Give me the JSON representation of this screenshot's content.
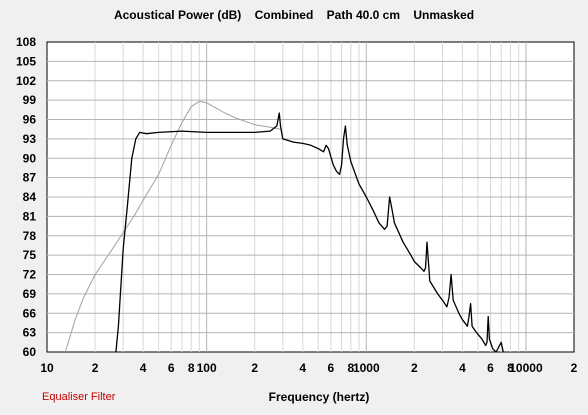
{
  "chart_data": {
    "type": "line",
    "title": "Acoustical Power (dB)    Combined    Path 40.0 cm    Unmasked",
    "xlabel": "Frequency (hertz)",
    "ylabel": "",
    "x_scale": "log",
    "xlim": [
      10,
      20000
    ],
    "ylim": [
      60,
      108
    ],
    "grid": true,
    "y_ticks": [
      "108",
      "105",
      "102",
      "99",
      "96",
      "93",
      "90",
      "87",
      "84",
      "81",
      "78",
      "75",
      "72",
      "69",
      "66",
      "63",
      "60"
    ],
    "x_ticks": [
      {
        "value": 10,
        "label": "10"
      },
      {
        "value": 20,
        "label": "2"
      },
      {
        "value": 40,
        "label": "4"
      },
      {
        "value": 60,
        "label": "6"
      },
      {
        "value": 80,
        "label": "8"
      },
      {
        "value": 100,
        "label": "100"
      },
      {
        "value": 200,
        "label": "2"
      },
      {
        "value": 400,
        "label": "4"
      },
      {
        "value": 600,
        "label": "6"
      },
      {
        "value": 800,
        "label": "8"
      },
      {
        "value": 1000,
        "label": "1000"
      },
      {
        "value": 2000,
        "label": "2"
      },
      {
        "value": 4000,
        "label": "4"
      },
      {
        "value": 6000,
        "label": "6"
      },
      {
        "value": 8000,
        "label": "8"
      },
      {
        "value": 10000,
        "label": "10000"
      },
      {
        "value": 20000,
        "label": "2"
      }
    ],
    "series": [
      {
        "color": "#000000",
        "points": [
          [
            27,
            60
          ],
          [
            28,
            64
          ],
          [
            29,
            70
          ],
          [
            30,
            76
          ],
          [
            32,
            83
          ],
          [
            34,
            90
          ],
          [
            36,
            93
          ],
          [
            38,
            94
          ],
          [
            42,
            93.8
          ],
          [
            50,
            94
          ],
          [
            70,
            94.2
          ],
          [
            100,
            94
          ],
          [
            150,
            94
          ],
          [
            200,
            94
          ],
          [
            250,
            94.2
          ],
          [
            275,
            95
          ],
          [
            285,
            97
          ],
          [
            290,
            95
          ],
          [
            300,
            93
          ],
          [
            350,
            92.5
          ],
          [
            400,
            92.3
          ],
          [
            450,
            92
          ],
          [
            500,
            91.5
          ],
          [
            540,
            91
          ],
          [
            560,
            92
          ],
          [
            580,
            91.5
          ],
          [
            620,
            89
          ],
          [
            650,
            88
          ],
          [
            680,
            87.5
          ],
          [
            700,
            89
          ],
          [
            720,
            93
          ],
          [
            740,
            95
          ],
          [
            760,
            92
          ],
          [
            800,
            89.5
          ],
          [
            900,
            86
          ],
          [
            1000,
            84
          ],
          [
            1100,
            82
          ],
          [
            1200,
            80
          ],
          [
            1300,
            79
          ],
          [
            1350,
            79.5
          ],
          [
            1400,
            84
          ],
          [
            1450,
            82
          ],
          [
            1500,
            80
          ],
          [
            1700,
            77
          ],
          [
            1900,
            75
          ],
          [
            2000,
            74
          ],
          [
            2200,
            73
          ],
          [
            2300,
            72.5
          ],
          [
            2350,
            73
          ],
          [
            2400,
            77
          ],
          [
            2450,
            74
          ],
          [
            2500,
            71
          ],
          [
            2800,
            69
          ],
          [
            3000,
            68
          ],
          [
            3200,
            67
          ],
          [
            3300,
            68.5
          ],
          [
            3400,
            72
          ],
          [
            3500,
            68
          ],
          [
            3800,
            66
          ],
          [
            4000,
            65
          ],
          [
            4300,
            64
          ],
          [
            4400,
            65.5
          ],
          [
            4500,
            67.5
          ],
          [
            4600,
            64
          ],
          [
            4900,
            63
          ],
          [
            5300,
            62
          ],
          [
            5600,
            61
          ],
          [
            5700,
            61.5
          ],
          [
            5800,
            65.5
          ],
          [
            5900,
            62
          ],
          [
            6200,
            60.5
          ],
          [
            6500,
            60
          ],
          [
            7000,
            61.5
          ],
          [
            7200,
            60
          ]
        ]
      },
      {
        "color": "#a0a0a0",
        "points": [
          [
            13,
            60
          ],
          [
            14,
            62.5
          ],
          [
            15,
            65
          ],
          [
            17,
            68.5
          ],
          [
            20,
            72
          ],
          [
            25,
            75.5
          ],
          [
            30,
            78.5
          ],
          [
            35,
            81
          ],
          [
            40,
            83.5
          ],
          [
            50,
            87.5
          ],
          [
            60,
            92
          ],
          [
            70,
            95.5
          ],
          [
            80,
            98
          ],
          [
            90,
            98.8
          ],
          [
            100,
            98.6
          ],
          [
            110,
            98
          ],
          [
            130,
            97
          ],
          [
            150,
            96.3
          ],
          [
            200,
            95.2
          ],
          [
            250,
            94.8
          ],
          [
            290,
            94.5
          ]
        ]
      }
    ]
  },
  "footer": {
    "filter_label": "Equaliser Filter"
  }
}
